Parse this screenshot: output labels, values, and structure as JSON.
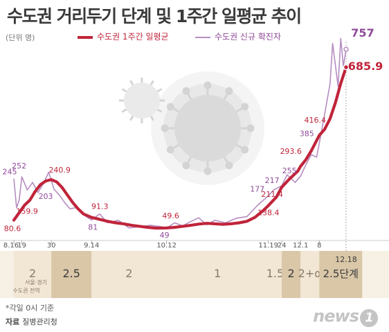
{
  "title": "수도권 거리두기 단계 및 1주간 일평균 추이",
  "unit": "(단위 명)",
  "legend": {
    "red": "수도권 1주간 일평균",
    "purple": "수도권 신규 확진자"
  },
  "colors": {
    "red": "#c0243a",
    "purple": "#b58cc0",
    "band": "#f2e6d4",
    "band_dark": "#d9c7a8"
  },
  "chart_data": {
    "type": "line",
    "x_ticks": [
      "8.16",
      "19",
      "30",
      "9.14",
      "10.12",
      "11.19",
      "24",
      "12.1",
      "8"
    ],
    "series": [
      {
        "name": "수도권 1주간 일평균",
        "annotations": [
          "80.6",
          "159.9",
          "240.9",
          "91.3",
          "49.6",
          "138.4",
          "211.4",
          "293.6",
          "416.4",
          "685.9"
        ],
        "points": [
          [
            "8.16",
            80.6
          ],
          [
            "8.18",
            110
          ],
          [
            "8.20",
            140
          ],
          [
            "8.22",
            159.9
          ],
          [
            "8.24",
            195
          ],
          [
            "8.26",
            222
          ],
          [
            "8.28",
            236
          ],
          [
            "8.30",
            240.9
          ],
          [
            "9.1",
            232
          ],
          [
            "9.3",
            210
          ],
          [
            "9.5",
            180
          ],
          [
            "9.7",
            150
          ],
          [
            "9.9",
            125
          ],
          [
            "9.11",
            105
          ],
          [
            "9.14",
            91.3
          ],
          [
            "9.17",
            84
          ],
          [
            "9.20",
            76
          ],
          [
            "9.23",
            70
          ],
          [
            "9.26",
            66
          ],
          [
            "9.29",
            60
          ],
          [
            "10.2",
            56
          ],
          [
            "10.5",
            52
          ],
          [
            "10.8",
            49
          ],
          [
            "10.12",
            49.6
          ],
          [
            "10.15",
            52
          ],
          [
            "10.18",
            56
          ],
          [
            "10.21",
            60
          ],
          [
            "10.24",
            65
          ],
          [
            "10.27",
            68
          ],
          [
            "10.30",
            66
          ],
          [
            "11.2",
            64
          ],
          [
            "11.5",
            66
          ],
          [
            "11.8",
            70
          ],
          [
            "11.11",
            76
          ],
          [
            "11.14",
            92
          ],
          [
            "11.17",
            118
          ],
          [
            "11.19",
            138.4
          ],
          [
            "11.22",
            172
          ],
          [
            "11.24",
            211.4
          ],
          [
            "11.27",
            245
          ],
          [
            "11.30",
            275
          ],
          [
            "12.1",
            293.6
          ],
          [
            "12.3",
            320
          ],
          [
            "12.5",
            355
          ],
          [
            "12.8",
            416.4
          ],
          [
            "12.10",
            440
          ],
          [
            "12.12",
            482
          ],
          [
            "12.14",
            545
          ],
          [
            "12.16",
            622
          ],
          [
            "12.18",
            685.9
          ]
        ]
      },
      {
        "name": "수도권 신규 확진자",
        "annotations": [
          "245",
          "252",
          "203",
          "81",
          "49",
          "177",
          "217",
          "255",
          "385",
          "757"
        ],
        "points": [
          [
            "8.16",
            245
          ],
          [
            "8.17",
            130
          ],
          [
            "8.18",
            160
          ],
          [
            "8.19",
            252
          ],
          [
            "8.21",
            200
          ],
          [
            "8.23",
            230
          ],
          [
            "8.25",
            190
          ],
          [
            "8.27",
            225
          ],
          [
            "8.29",
            270
          ],
          [
            "8.31",
            203
          ],
          [
            "9.2",
            180
          ],
          [
            "9.4",
            150
          ],
          [
            "9.6",
            125
          ],
          [
            "9.8",
            130
          ],
          [
            "9.10",
            115
          ],
          [
            "9.12",
            95
          ],
          [
            "9.14",
            81
          ],
          [
            "9.17",
            105
          ],
          [
            "9.20",
            70
          ],
          [
            "9.24",
            80
          ],
          [
            "9.28",
            50
          ],
          [
            "10.2",
            55
          ],
          [
            "10.6",
            60
          ],
          [
            "10.10",
            55
          ],
          [
            "10.12",
            49
          ],
          [
            "10.15",
            70
          ],
          [
            "10.18",
            58
          ],
          [
            "10.21",
            75
          ],
          [
            "10.24",
            90
          ],
          [
            "10.27",
            62
          ],
          [
            "10.30",
            80
          ],
          [
            "11.3",
            70
          ],
          [
            "11.7",
            88
          ],
          [
            "11.11",
            95
          ],
          [
            "11.15",
            140
          ],
          [
            "11.19",
            177
          ],
          [
            "11.21",
            200
          ],
          [
            "11.24",
            217
          ],
          [
            "11.26",
            260
          ],
          [
            "11.29",
            230
          ],
          [
            "12.1",
            255
          ],
          [
            "12.3",
            300
          ],
          [
            "12.5",
            340
          ],
          [
            "12.7",
            330
          ],
          [
            "12.8",
            385
          ],
          [
            "12.10",
            500
          ],
          [
            "12.12",
            620
          ],
          [
            "12.13",
            780
          ],
          [
            "12.15",
            610
          ],
          [
            "12.16",
            800
          ],
          [
            "12.17",
            690
          ],
          [
            "12.18",
            757
          ]
        ]
      }
    ],
    "stages": [
      {
        "label": "2",
        "tone": "light"
      },
      {
        "label": "2.5",
        "tone": "dark"
      },
      {
        "label": "2",
        "tone": "light"
      },
      {
        "label": "1",
        "tone": "light"
      },
      {
        "label": "1.5",
        "tone": "light"
      },
      {
        "label": "2",
        "tone": "dark"
      },
      {
        "label": "2+α",
        "tone": "light"
      },
      {
        "label": "2.5단계",
        "tone": "dark"
      }
    ],
    "stage_note": "서울·경기\n수도권 전역",
    "stage_date": "12.18"
  },
  "footnote": "*각일 0시 기준",
  "source": {
    "label": "자료",
    "text": "질병관리청"
  },
  "logo": {
    "text": "news",
    "num": "1"
  }
}
